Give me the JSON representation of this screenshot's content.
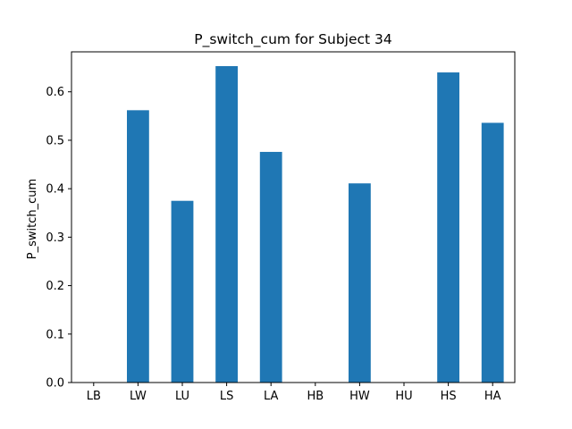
{
  "chart_data": {
    "type": "bar",
    "title": "P_switch_cum for Subject 34",
    "xlabel": "",
    "ylabel": "P_switch_cum",
    "categories": [
      "LB",
      "LW",
      "LU",
      "LS",
      "LA",
      "HB",
      "HW",
      "HU",
      "HS",
      "HA"
    ],
    "values": [
      0.0,
      0.562,
      0.375,
      0.653,
      0.476,
      0.0,
      0.411,
      0.0,
      0.64,
      0.536
    ],
    "ylim": [
      0.0,
      0.6825
    ],
    "yticks": [
      0.0,
      0.1,
      0.2,
      0.3,
      0.4,
      0.5,
      0.6
    ],
    "ytick_labels": [
      "0.0",
      "0.1",
      "0.2",
      "0.3",
      "0.4",
      "0.5",
      "0.6"
    ],
    "bar_color": "#1f77b4",
    "grid": false,
    "legend": null
  }
}
